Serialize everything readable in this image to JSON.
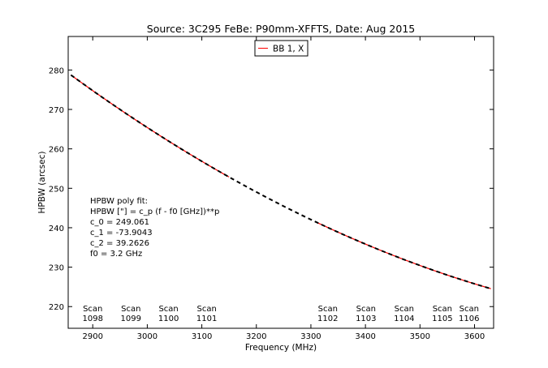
{
  "chart_data": {
    "type": "line",
    "title": "Source: 3C295 FeBe: P90mm-XFFTS, Date: Aug 2015",
    "xlabel": "Frequency (MHz)",
    "ylabel": "HPBW (arcsec)",
    "xlim": [
      2855,
      3635
    ],
    "ylim": [
      214.5,
      288.5
    ],
    "xticks": [
      2900,
      3000,
      3100,
      3200,
      3300,
      3400,
      3500,
      3600
    ],
    "yticks": [
      220,
      230,
      240,
      250,
      260,
      270,
      280
    ],
    "grid": false,
    "legend": {
      "position": "top-center",
      "entries": [
        "BB 1, X"
      ]
    },
    "fit": {
      "c0": 249.061,
      "c1": -73.9043,
      "c2": 39.2626,
      "f0_ghz": 3.2,
      "x_range": [
        2860,
        3630
      ]
    },
    "series": [
      {
        "name": "BB 1, X",
        "color": "#ff0000",
        "style": "solid",
        "segments": [
          [
            2860,
            3150
          ],
          [
            3310,
            3630
          ]
        ]
      }
    ],
    "annotation_lines": [
      "HPBW poly fit:",
      "HPBW [\"] = c_p (f - f0 [GHz])**p",
      "c_0 = 249.061",
      "c_1 = -73.9043",
      "c_2 = 39.2626",
      "f0 = 3.2 GHz"
    ],
    "scan_labels": [
      {
        "x": 2900,
        "line1": "Scan",
        "line2": "1098"
      },
      {
        "x": 2970,
        "line1": "Scan",
        "line2": "1099"
      },
      {
        "x": 3039,
        "line1": "Scan",
        "line2": "1100"
      },
      {
        "x": 3109,
        "line1": "Scan",
        "line2": "1101"
      },
      {
        "x": 3331,
        "line1": "Scan",
        "line2": "1102"
      },
      {
        "x": 3401,
        "line1": "Scan",
        "line2": "1103"
      },
      {
        "x": 3471,
        "line1": "Scan",
        "line2": "1104"
      },
      {
        "x": 3541,
        "line1": "Scan",
        "line2": "1105"
      },
      {
        "x": 3590,
        "line1": "Scan",
        "line2": "1106"
      }
    ]
  }
}
